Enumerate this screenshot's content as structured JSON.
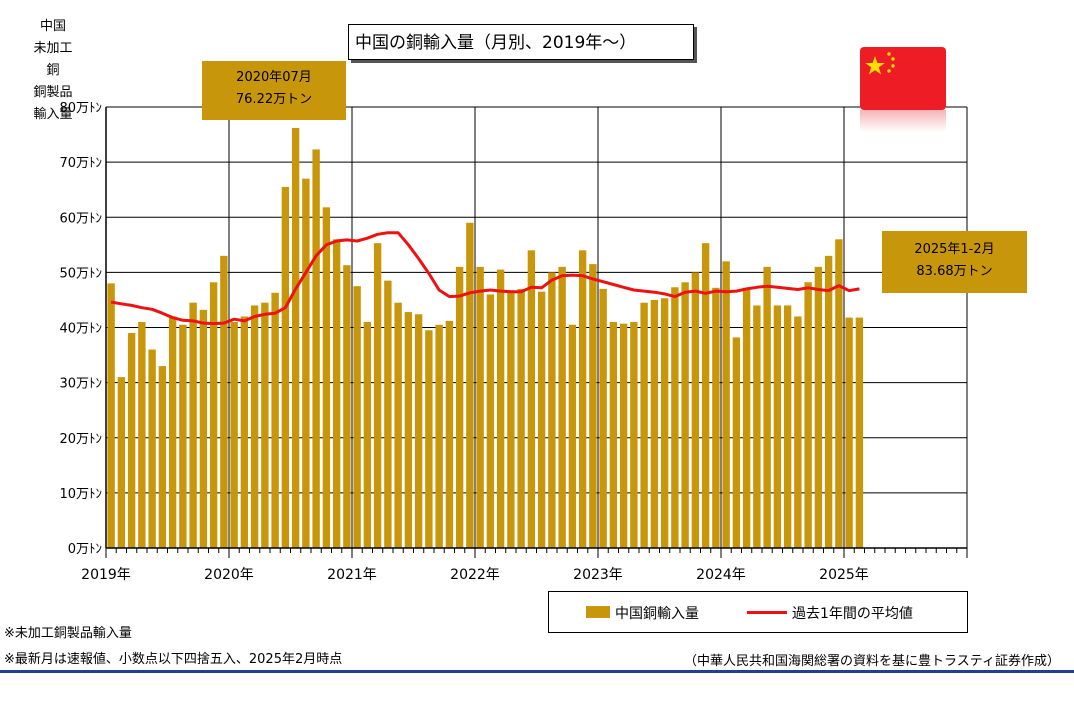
{
  "yaxis_title_lines": [
    "中国",
    "未加工銅",
    "銅製品輸入量"
  ],
  "title": "中国の銅輸入量（月別、2019年～）",
  "callout_peak": {
    "line1": "2020年07月",
    "line2": "76.22万トン"
  },
  "callout_latest": {
    "line1": "2025年1-2月",
    "line2": "83.68万トン"
  },
  "flag": "china-flag-icon",
  "legend": {
    "bar_label": "中国銅輸入量",
    "line_label": "過去1年間の平均値"
  },
  "notes": [
    "※未加工銅製品輸入量",
    "※最新月は速報値、小数点以下四捨五入、2025年2月時点"
  ],
  "source": "（中華人民共和国海関総署の資料を基に豊トラスティ証券作成）",
  "colors": {
    "bar": "#c8960a",
    "line": "#ee1111",
    "grid": "#000000",
    "rule": "#1f3f8f"
  },
  "chart_data": {
    "type": "bar",
    "title": "中国の銅輸入量（月別、2019年～）",
    "ylabel": "中国 未加工銅 銅製品輸入量",
    "ylim": [
      0,
      80
    ],
    "y_ticks": [
      "0万ﾄﾝ",
      "10万ﾄﾝ",
      "20万ﾄﾝ",
      "30万ﾄﾝ",
      "40万ﾄﾝ",
      "50万ﾄﾝ",
      "60万ﾄﾝ",
      "70万ﾄﾝ",
      "80万ﾄﾝ"
    ],
    "x_year_labels": [
      "2019年",
      "2020年",
      "2021年",
      "2022年",
      "2023年",
      "2024年",
      "2025年"
    ],
    "months_on_axis": 84,
    "grid": true,
    "legend_position": "bottom",
    "series": [
      {
        "name": "中国銅輸入量",
        "type": "bar",
        "values": [
          48.0,
          31.0,
          39.0,
          41.0,
          36.0,
          33.0,
          42.0,
          40.5,
          44.5,
          43.2,
          48.2,
          53.0,
          41.0,
          42.0,
          44.0,
          44.5,
          46.3,
          65.5,
          76.2,
          67.0,
          72.3,
          61.8,
          56.0,
          51.3,
          47.5,
          41.0,
          55.3,
          48.5,
          44.5,
          42.8,
          42.4,
          39.5,
          40.5,
          41.2,
          51.0,
          59.0,
          51.0,
          46.0,
          50.5,
          46.5,
          47.0,
          54.0,
          46.5,
          50.0,
          51.0,
          40.5,
          54.0,
          51.5,
          47.0,
          41.0,
          40.7,
          41.0,
          44.5,
          45.0,
          45.3,
          47.3,
          48.2,
          50.0,
          55.3,
          47.2,
          52.0,
          38.2,
          47.2,
          44.0,
          51.0,
          44.0,
          44.0,
          42.0,
          48.2,
          51.0,
          53.0,
          56.0,
          41.8,
          41.8
        ]
      },
      {
        "name": "過去1年間の平均値",
        "type": "line",
        "values": [
          44.6,
          44.3,
          44.0,
          43.6,
          43.3,
          42.6,
          41.8,
          41.3,
          41.2,
          40.8,
          40.7,
          40.8,
          41.5,
          41.2,
          42.0,
          42.4,
          42.6,
          43.6,
          47.0,
          50.0,
          53.0,
          55.0,
          55.7,
          55.9,
          55.7,
          56.2,
          56.9,
          57.2,
          57.2,
          55.0,
          52.5,
          49.8,
          46.8,
          45.6,
          45.7,
          46.3,
          46.6,
          46.8,
          46.6,
          46.5,
          46.5,
          47.3,
          47.2,
          48.6,
          49.4,
          49.5,
          49.4,
          48.8,
          48.3,
          47.8,
          47.3,
          46.8,
          46.6,
          46.4,
          46.1,
          45.6,
          46.4,
          46.6,
          46.2,
          46.6,
          46.5,
          46.6,
          47.0,
          47.3,
          47.5,
          47.3,
          47.1,
          46.9,
          47.2,
          46.9,
          46.7,
          47.6,
          46.7,
          47.0
        ]
      }
    ]
  }
}
